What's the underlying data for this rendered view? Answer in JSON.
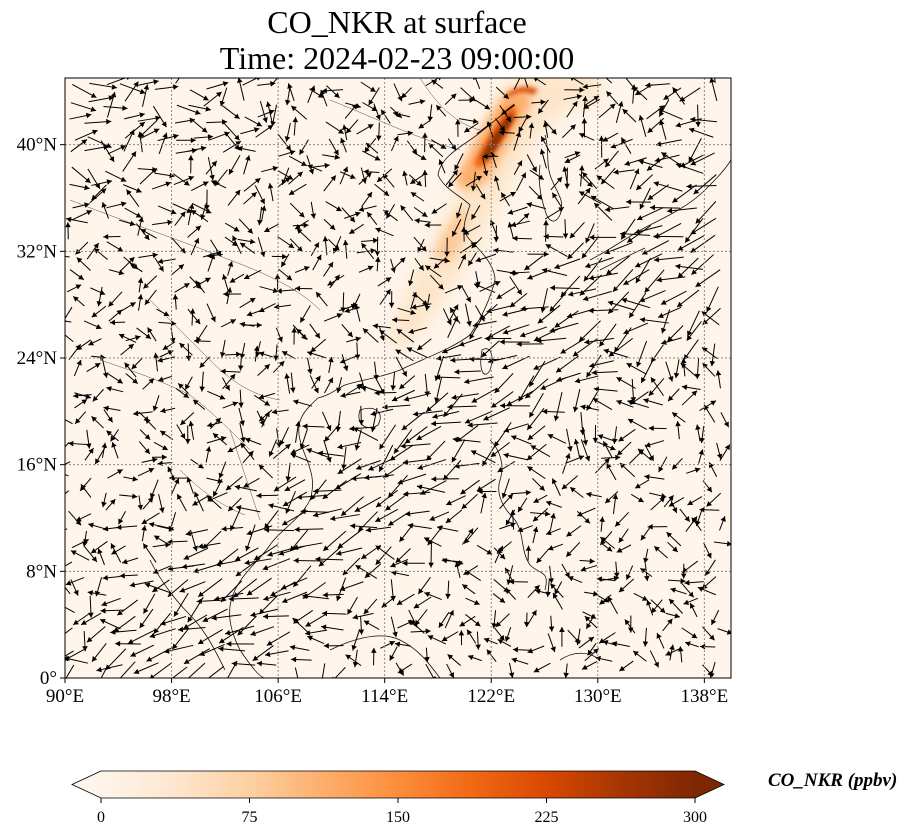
{
  "title": {
    "line1": "CO_NKR at surface",
    "line2": "Time: 2024-02-23 09:00:00"
  },
  "map": {
    "lon_range": [
      90,
      140
    ],
    "lat_range": [
      0,
      45
    ],
    "lon_ticks": [
      "90°E",
      "98°E",
      "106°E",
      "114°E",
      "122°E",
      "130°E",
      "138°E"
    ],
    "lon_tick_values": [
      90,
      98,
      106,
      114,
      122,
      130,
      138
    ],
    "lat_ticks": [
      "0°",
      "8°N",
      "16°N",
      "24°N",
      "32°N",
      "40°N"
    ],
    "lat_tick_values": [
      0,
      8,
      16,
      24,
      32,
      40
    ],
    "gridlines": true,
    "background_color": "#fff5eb",
    "plume_colors": [
      "#fee6ce",
      "#fdd0a2",
      "#fdae6b",
      "#fd8d3c",
      "#f16913",
      "#d94801",
      "#a63603",
      "#7f2704"
    ]
  },
  "colorbar": {
    "label": "CO_NKR (ppbv)",
    "ticks": [
      "0",
      "75",
      "150",
      "225",
      "300"
    ],
    "tick_values": [
      0,
      75,
      150,
      225,
      300
    ],
    "range": [
      0,
      300
    ],
    "extend": "both",
    "colormap": "Oranges",
    "colors": [
      "#fff5eb",
      "#fee6ce",
      "#fdd0a2",
      "#fdae6b",
      "#fd8d3c",
      "#f16913",
      "#d94801",
      "#a63603",
      "#7f2704"
    ]
  }
}
